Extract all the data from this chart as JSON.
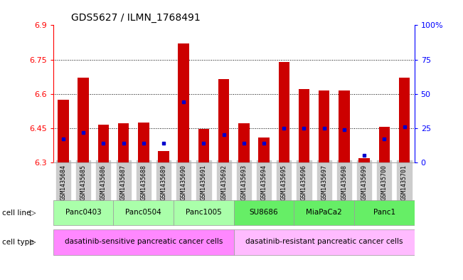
{
  "title": "GDS5627 / ILMN_1768491",
  "samples": [
    "GSM1435684",
    "GSM1435685",
    "GSM1435686",
    "GSM1435687",
    "GSM1435688",
    "GSM1435689",
    "GSM1435690",
    "GSM1435691",
    "GSM1435692",
    "GSM1435693",
    "GSM1435694",
    "GSM1435695",
    "GSM1435696",
    "GSM1435697",
    "GSM1435698",
    "GSM1435699",
    "GSM1435700",
    "GSM1435701"
  ],
  "red_values": [
    6.575,
    6.67,
    6.465,
    6.47,
    6.475,
    6.35,
    6.82,
    6.445,
    6.665,
    6.47,
    6.41,
    6.74,
    6.62,
    6.615,
    6.615,
    6.32,
    6.455,
    6.67
  ],
  "blue_values": [
    17,
    22,
    14,
    14,
    14,
    14,
    44,
    14,
    20,
    14,
    14,
    25,
    25,
    25,
    24,
    5,
    17,
    26
  ],
  "y_min": 6.3,
  "y_max": 6.9,
  "y_ticks": [
    6.3,
    6.45,
    6.6,
    6.75,
    6.9
  ],
  "y_right_ticks": [
    0,
    25,
    50,
    75,
    100
  ],
  "y_right_labels": [
    "0",
    "25",
    "50",
    "75",
    "100%"
  ],
  "cell_lines": [
    {
      "label": "Panc0403",
      "start": 0,
      "end": 2
    },
    {
      "label": "Panc0504",
      "start": 3,
      "end": 5
    },
    {
      "label": "Panc1005",
      "start": 6,
      "end": 8
    },
    {
      "label": "SU8686",
      "start": 9,
      "end": 11
    },
    {
      "label": "MiaPaCa2",
      "start": 12,
      "end": 14
    },
    {
      "label": "Panc1",
      "start": 15,
      "end": 17
    }
  ],
  "cell_types": [
    {
      "label": "dasatinib-sensitive pancreatic cancer cells",
      "start": 0,
      "end": 8,
      "color": "#ff88ff"
    },
    {
      "label": "dasatinib-resistant pancreatic cancer cells",
      "start": 9,
      "end": 17,
      "color": "#ffbbff"
    }
  ],
  "cell_line_color_sensitive": "#aaffaa",
  "cell_line_color_resistant": "#66ee66",
  "cell_line_groups": [
    {
      "label": "Panc0403",
      "start": 0,
      "end": 2,
      "sensitive": true
    },
    {
      "label": "Panc0504",
      "start": 3,
      "end": 5,
      "sensitive": true
    },
    {
      "label": "Panc1005",
      "start": 6,
      "end": 8,
      "sensitive": true
    },
    {
      "label": "SU8686",
      "start": 9,
      "end": 11,
      "sensitive": false
    },
    {
      "label": "MiaPaCa2",
      "start": 12,
      "end": 14,
      "sensitive": false
    },
    {
      "label": "Panc1",
      "start": 15,
      "end": 17,
      "sensitive": false
    }
  ],
  "bar_color_red": "#cc0000",
  "bar_color_blue": "#0000cc",
  "background_color": "#ffffff",
  "bar_width": 0.55,
  "tick_label_color": "#888888",
  "tick_bg_color": "#dddddd"
}
